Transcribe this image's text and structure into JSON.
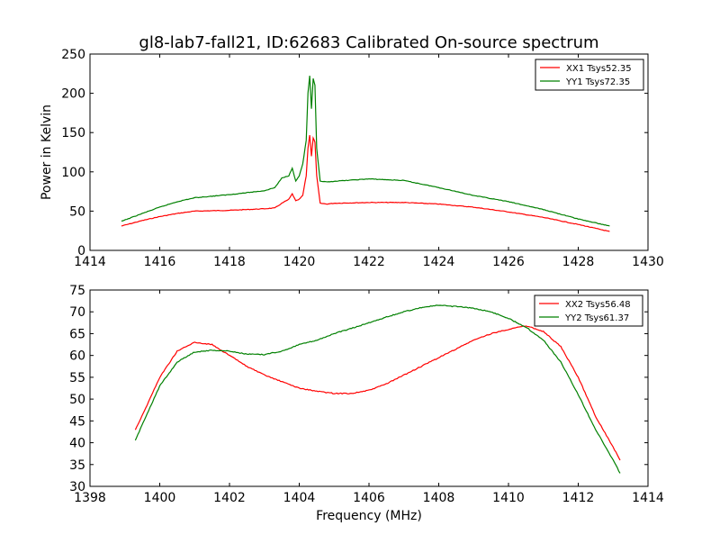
{
  "figure": {
    "title": "gl8-lab7-fall21, ID:62683 Calibrated On-source spectrum",
    "ylabel": "Power in Kelvin",
    "xlabel": "Frequency (MHz)"
  },
  "chart_data": [
    {
      "type": "line",
      "title": "gl8-lab7-fall21, ID:62683 Calibrated On-source spectrum",
      "xlabel": "",
      "ylabel": "Power in Kelvin",
      "xlim": [
        1414,
        1430
      ],
      "ylim": [
        0,
        250
      ],
      "xticks": [
        1414,
        1416,
        1418,
        1420,
        1422,
        1424,
        1426,
        1428,
        1430
      ],
      "yticks": [
        0,
        50,
        100,
        150,
        200,
        250
      ],
      "grid": false,
      "legend_position": "top-right",
      "series": [
        {
          "name": "XX1 Tsys52.35",
          "color": "#ff0000",
          "x": [
            1414.9,
            1415.5,
            1416.0,
            1416.5,
            1417.0,
            1418.0,
            1419.0,
            1419.3,
            1419.5,
            1419.7,
            1419.8,
            1419.9,
            1420.0,
            1420.1,
            1420.2,
            1420.25,
            1420.3,
            1420.35,
            1420.4,
            1420.45,
            1420.5,
            1420.6,
            1420.8,
            1421.0,
            1422.0,
            1423.0,
            1424.0,
            1425.0,
            1426.0,
            1427.0,
            1428.0,
            1428.9
          ],
          "y": [
            31,
            38,
            43,
            47,
            50,
            51,
            53,
            54,
            60,
            65,
            72,
            63,
            65,
            70,
            95,
            130,
            147,
            120,
            143,
            138,
            95,
            60,
            59,
            60,
            61,
            61,
            59,
            55,
            49,
            42,
            33,
            24
          ]
        },
        {
          "name": "YY1 Tsys72.35",
          "color": "#008000",
          "x": [
            1414.9,
            1415.5,
            1416.0,
            1416.5,
            1417.0,
            1418.0,
            1419.0,
            1419.3,
            1419.5,
            1419.7,
            1419.8,
            1419.9,
            1420.0,
            1420.1,
            1420.2,
            1420.25,
            1420.3,
            1420.35,
            1420.4,
            1420.45,
            1420.5,
            1420.6,
            1420.8,
            1421.0,
            1422.0,
            1423.0,
            1424.0,
            1425.0,
            1426.0,
            1427.0,
            1428.0,
            1428.9
          ],
          "y": [
            37,
            47,
            55,
            62,
            67,
            71,
            76,
            80,
            92,
            95,
            105,
            88,
            95,
            110,
            140,
            200,
            222,
            180,
            219,
            210,
            130,
            88,
            87,
            88,
            91,
            89,
            80,
            70,
            62,
            52,
            40,
            31
          ]
        }
      ]
    },
    {
      "type": "line",
      "title": "",
      "xlabel": "Frequency (MHz)",
      "ylabel": "",
      "xlim": [
        1398,
        1414
      ],
      "ylim": [
        30,
        75
      ],
      "xticks": [
        1398,
        1400,
        1402,
        1404,
        1406,
        1408,
        1410,
        1412,
        1414
      ],
      "yticks": [
        30,
        35,
        40,
        45,
        50,
        55,
        60,
        65,
        70,
        75
      ],
      "grid": false,
      "legend_position": "top-right",
      "series": [
        {
          "name": "XX2 Tsys56.48",
          "color": "#ff0000",
          "x": [
            1399.3,
            1399.6,
            1400.0,
            1400.5,
            1401.0,
            1401.5,
            1402.0,
            1402.5,
            1403.0,
            1403.5,
            1404.0,
            1404.5,
            1405.0,
            1405.5,
            1406.0,
            1406.5,
            1407.0,
            1407.5,
            1408.0,
            1408.5,
            1409.0,
            1409.5,
            1410.0,
            1410.5,
            1411.0,
            1411.5,
            1412.0,
            1412.5,
            1413.0,
            1413.2
          ],
          "y": [
            43,
            48,
            55,
            61,
            63,
            62.5,
            60,
            57.5,
            55.5,
            54,
            52.5,
            51.8,
            51.3,
            51.3,
            52,
            53.5,
            55.5,
            57.5,
            59.5,
            61.5,
            63.5,
            65,
            66,
            66.8,
            65.5,
            62,
            55,
            46,
            39,
            36
          ]
        },
        {
          "name": "YY2 Tsys61.37",
          "color": "#008000",
          "x": [
            1399.3,
            1399.6,
            1400.0,
            1400.5,
            1401.0,
            1401.5,
            1402.0,
            1402.5,
            1403.0,
            1403.5,
            1404.0,
            1404.5,
            1405.0,
            1405.5,
            1406.0,
            1406.5,
            1407.0,
            1407.5,
            1408.0,
            1408.5,
            1409.0,
            1409.5,
            1410.0,
            1410.5,
            1411.0,
            1411.5,
            1412.0,
            1412.5,
            1413.0,
            1413.2
          ],
          "y": [
            40.5,
            46,
            53,
            58.5,
            60.8,
            61.2,
            61,
            60.3,
            60.2,
            61,
            62.5,
            63.5,
            65,
            66.2,
            67.5,
            68.8,
            70,
            71,
            71.5,
            71.2,
            70.8,
            70,
            68.5,
            66.5,
            63.5,
            58.5,
            51,
            43,
            36,
            33
          ]
        }
      ]
    }
  ]
}
